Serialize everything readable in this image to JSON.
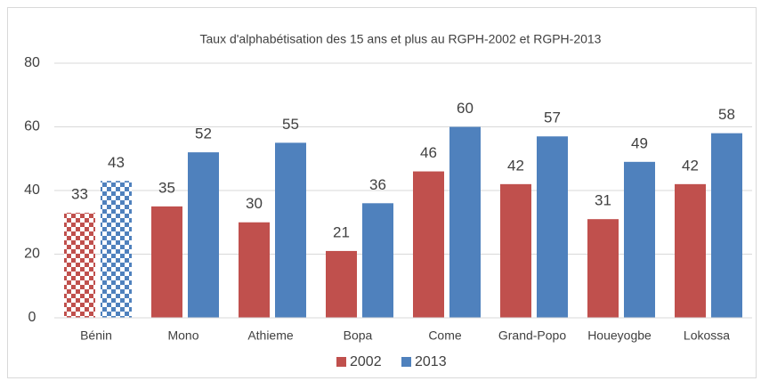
{
  "chart_data": {
    "type": "bar",
    "title": "Taux d'alphabétisation des 15 ans et plus au RGPH-2002 et RGPH-2013",
    "categories": [
      "Bénin",
      "Mono",
      "Athieme",
      "Bopa",
      "Come",
      "Grand-Popo",
      "Houeyogbe",
      "Lokossa"
    ],
    "series": [
      {
        "name": "2002",
        "color": "#c0504d",
        "values": [
          33,
          35,
          30,
          21,
          46,
          42,
          31,
          42
        ]
      },
      {
        "name": "2013",
        "color": "#4f81bd",
        "values": [
          43,
          52,
          55,
          36,
          60,
          57,
          49,
          58
        ]
      }
    ],
    "patterned_category": 0,
    "ylim": [
      0,
      80
    ],
    "yticks": [
      0,
      20,
      40,
      60,
      80
    ],
    "grid": true,
    "legend": "bottom"
  }
}
